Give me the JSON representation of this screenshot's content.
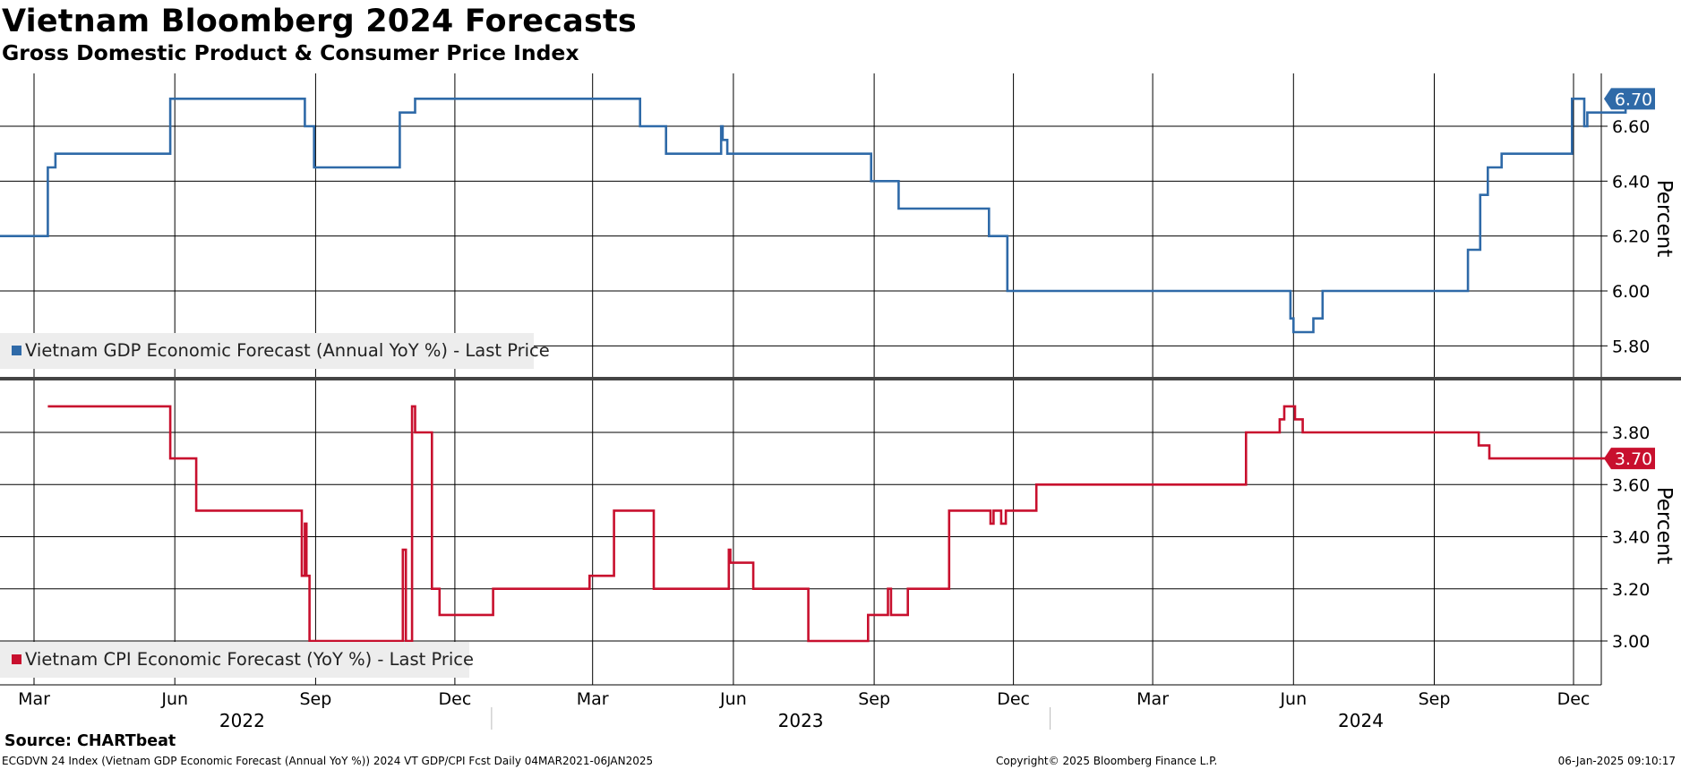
{
  "title": "Vietnam Bloomberg 2024 Forecasts",
  "subtitle": "Gross Domestic Product & Consumer Price Index",
  "source": "Source: CHARTbeat",
  "footer": {
    "left": "ECGDVN 24 Index (Vietnam GDP Economic Forecast (Annual YoY %)) 2024 VT GDP/CPI Fcst  Daily 04MAR2021-06JAN2025",
    "middle": "Copyright© 2025 Bloomberg Finance L.P.",
    "right": "06-Jan-2025 09:10:17"
  },
  "colors": {
    "gdp": "#2f6aa8",
    "cpi": "#c8102e",
    "grid": "#000000",
    "legend_bg": "#ededed"
  },
  "x_axis": {
    "month_ticks": [
      {
        "label": "Mar",
        "date": "2022-03-01"
      },
      {
        "label": "Jun",
        "date": "2022-06-01"
      },
      {
        "label": "Sep",
        "date": "2022-09-01"
      },
      {
        "label": "Dec",
        "date": "2022-12-01"
      },
      {
        "label": "Mar",
        "date": "2023-03-01"
      },
      {
        "label": "Jun",
        "date": "2023-06-01"
      },
      {
        "label": "Sep",
        "date": "2023-09-01"
      },
      {
        "label": "Dec",
        "date": "2023-12-01"
      },
      {
        "label": "Mar",
        "date": "2024-03-01"
      },
      {
        "label": "Jun",
        "date": "2024-06-01"
      },
      {
        "label": "Sep",
        "date": "2024-09-01"
      },
      {
        "label": "Dec",
        "date": "2024-12-01"
      }
    ],
    "year_labels": [
      {
        "label": "2022",
        "date": "2022-07-15"
      },
      {
        "label": "2023",
        "date": "2023-07-15"
      },
      {
        "label": "2024",
        "date": "2024-07-15"
      }
    ],
    "year_separators": [
      "2023-01-01",
      "2024-01-01"
    ],
    "range": [
      "2022-02-01",
      "2025-01-06"
    ]
  },
  "chart_data": [
    {
      "type": "line",
      "series": [
        {
          "name": "Vietnam GDP Economic Forecast (Annual YoY %) - Last Price",
          "last_value_label": "6.70",
          "x": [
            "2022-02-01",
            "2022-03-10",
            "2022-03-12",
            "2022-03-15",
            "2022-05-29",
            "2022-08-25",
            "2022-08-31",
            "2022-10-25",
            "2022-10-26",
            "2022-11-01",
            "2022-11-05",
            "2023-04-01",
            "2023-04-05",
            "2023-04-18",
            "2023-05-23",
            "2023-05-24",
            "2023-05-25",
            "2023-05-26",
            "2023-05-28",
            "2023-08-30",
            "2023-09-17",
            "2023-09-19",
            "2023-11-15",
            "2023-11-23",
            "2023-11-27",
            "2024-05-29",
            "2024-05-30",
            "2024-06-01",
            "2024-06-14",
            "2024-06-16",
            "2024-06-20",
            "2024-09-21",
            "2024-09-23",
            "2024-09-30",
            "2024-10-01",
            "2024-10-03",
            "2024-10-06",
            "2024-10-15",
            "2024-11-30",
            "2024-12-02",
            "2024-12-08",
            "2024-12-10",
            "2024-12-12",
            "2024-12-23",
            "2025-01-04"
          ],
          "y": [
            6.2,
            6.45,
            6.45,
            6.5,
            6.7,
            6.6,
            6.45,
            6.45,
            6.65,
            6.65,
            6.7,
            6.6,
            6.6,
            6.5,
            6.5,
            6.6,
            6.55,
            6.55,
            6.5,
            6.4,
            6.3,
            6.3,
            6.2,
            6.2,
            6.0,
            6.0,
            5.9,
            5.85,
            5.9,
            5.9,
            6.0,
            6.0,
            6.15,
            6.15,
            6.35,
            6.35,
            6.45,
            6.5,
            6.7,
            6.7,
            6.6,
            6.65,
            6.65,
            6.65,
            6.7
          ]
        }
      ],
      "ylim": [
        5.68,
        6.79
      ],
      "yticks": [
        "5.80",
        "6.00",
        "6.20",
        "6.40",
        "6.60"
      ],
      "ylabel": "Percent",
      "grid": true,
      "legend": "bottom-left"
    },
    {
      "type": "line",
      "series": [
        {
          "name": "Vietnam CPI Economic Forecast (YoY %) - Last Price",
          "last_value_label": "3.70",
          "x": [
            "2022-03-10",
            "2022-05-29",
            "2022-06-15",
            "2022-08-23",
            "2022-08-25",
            "2022-08-26",
            "2022-08-28",
            "2022-10-28",
            "2022-10-30",
            "2022-11-03",
            "2022-11-05",
            "2022-11-09",
            "2022-11-16",
            "2022-11-21",
            "2022-12-10",
            "2022-12-26",
            "2023-01-23",
            "2023-02-27",
            "2023-03-15",
            "2023-04-08",
            "2023-04-10",
            "2023-05-29",
            "2023-05-30",
            "2023-05-31",
            "2023-06-14",
            "2023-07-01",
            "2023-07-20",
            "2023-08-28",
            "2023-09-10",
            "2023-09-12",
            "2023-09-16",
            "2023-09-23",
            "2023-10-20",
            "2023-11-16",
            "2023-11-18",
            "2023-11-20",
            "2023-11-23",
            "2023-11-26",
            "2023-12-13",
            "2023-12-16",
            "2023-12-21",
            "2024-05-01",
            "2024-05-23",
            "2024-05-26",
            "2024-06-02",
            "2024-06-07",
            "2024-06-13",
            "2024-09-30",
            "2024-10-07",
            "2024-12-27"
          ],
          "y": [
            3.9,
            3.7,
            3.5,
            3.25,
            3.45,
            3.25,
            3.0,
            3.35,
            3.0,
            3.9,
            3.8,
            3.8,
            3.2,
            3.1,
            3.1,
            3.2,
            3.2,
            3.25,
            3.5,
            3.5,
            3.2,
            3.35,
            3.3,
            3.3,
            3.2,
            3.2,
            3.0,
            3.1,
            3.2,
            3.1,
            3.1,
            3.2,
            3.5,
            3.45,
            3.5,
            3.5,
            3.45,
            3.5,
            3.5,
            3.6,
            3.6,
            3.8,
            3.85,
            3.9,
            3.85,
            3.8,
            3.8,
            3.75,
            3.7,
            3.7
          ]
        }
      ],
      "ylim": [
        2.84,
        3.99
      ],
      "yticks": [
        "3.00",
        "3.20",
        "3.40",
        "3.60",
        "3.80"
      ],
      "ylabel": "Percent",
      "grid": true,
      "legend": "bottom-left"
    }
  ]
}
